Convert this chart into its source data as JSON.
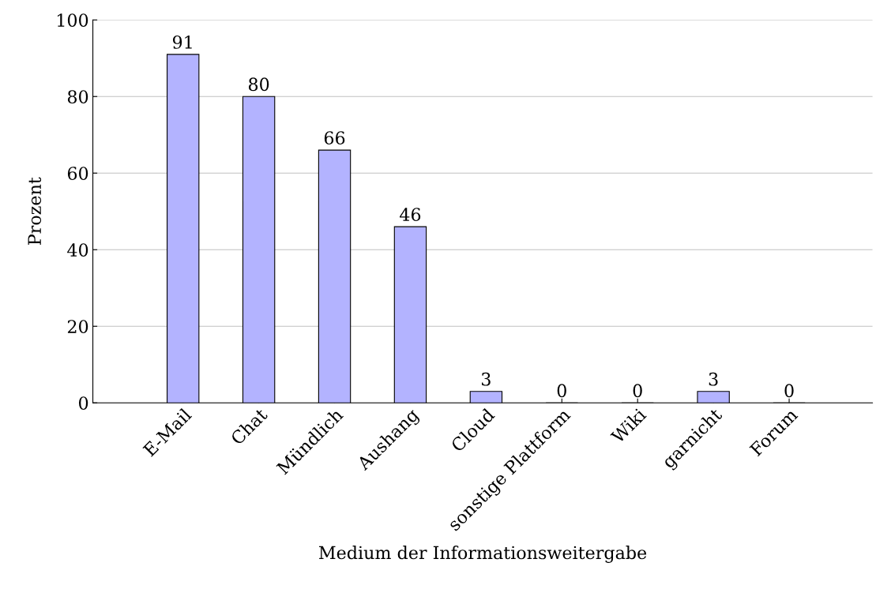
{
  "chart_data": {
    "type": "bar",
    "xlabel": "Medium der Informationsweitergabe",
    "ylabel": "Prozent",
    "categories": [
      "E-Mail",
      "Chat",
      "Mündlich",
      "Aushang",
      "Cloud",
      "sonstige Plattform",
      "Wiki",
      "garnicht",
      "Forum"
    ],
    "values": [
      91,
      80,
      66,
      46,
      3,
      0,
      0,
      3,
      0
    ],
    "color": "#b3b3ff",
    "ylim": [
      0,
      100
    ],
    "yticks": [
      0,
      20,
      40,
      60,
      80,
      100
    ],
    "grid": "y",
    "data_labels": true
  }
}
